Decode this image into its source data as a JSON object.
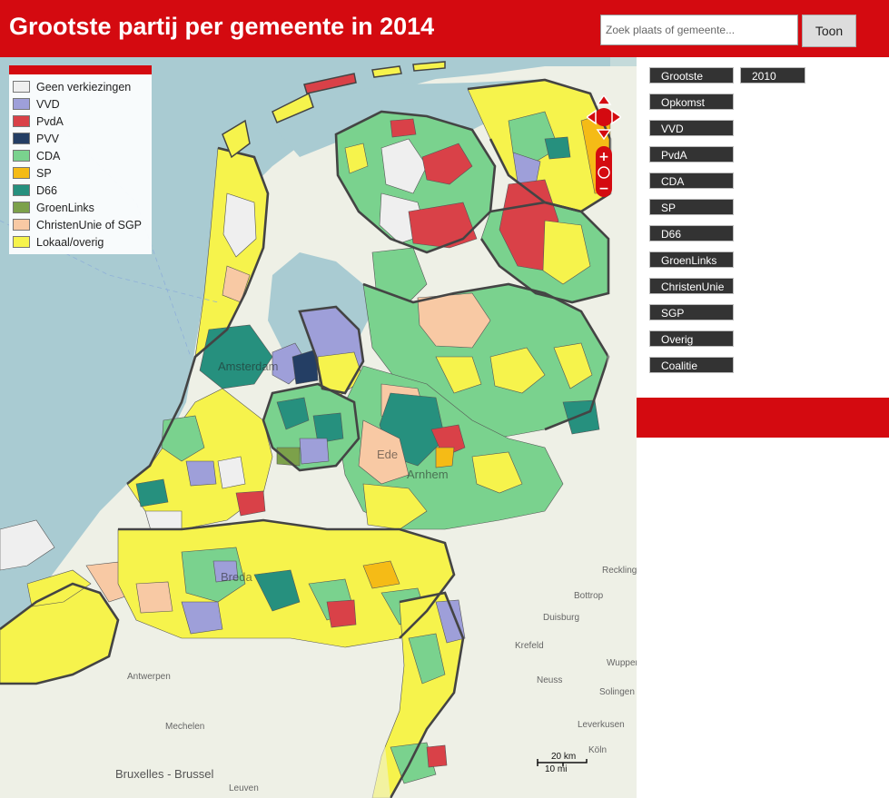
{
  "header": {
    "title": "Grootste partij per gemeente in 2014",
    "search_placeholder": "Zoek plaats of gemeente...",
    "search_value": "",
    "search_button": "Toon"
  },
  "legend": {
    "items": [
      {
        "label": "Geen verkiezingen",
        "color": "#efefef"
      },
      {
        "label": "VVD",
        "color": "#9e9fd9"
      },
      {
        "label": "PvdA",
        "color": "#d94148"
      },
      {
        "label": "PVV",
        "color": "#243e64"
      },
      {
        "label": "CDA",
        "color": "#7ad28e"
      },
      {
        "label": "SP",
        "color": "#f5bb16"
      },
      {
        "label": "D66",
        "color": "#26907e"
      },
      {
        "label": "GroenLinks",
        "color": "#7ca14a"
      },
      {
        "label": "ChristenUnie of SGP",
        "color": "#f8c9a4"
      },
      {
        "label": "Lokaal/overig",
        "color": "#f6f34c"
      }
    ]
  },
  "panel": {
    "year_buttons": [
      "Grootste",
      "2010"
    ],
    "buttons": [
      "Opkomst",
      "VVD",
      "PvdA",
      "CDA",
      "SP",
      "D66",
      "GroenLinks",
      "ChristenUnie",
      "SGP",
      "Overig",
      "Coalitie"
    ]
  },
  "map": {
    "labels": [
      "Amsterdam",
      "Ede",
      "Arnhem",
      "Breda",
      "Antwerpen",
      "Mechelen",
      "Bruxelles - Brussel",
      "Leuven",
      "Duisburg",
      "Krefeld",
      "Neuss",
      "Bottrop",
      "Recklinghausen",
      "Wuppertal",
      "Solingen",
      "Leverkusen",
      "Köln"
    ],
    "scale_km": "20 km",
    "scale_mi": "10 mi",
    "water_color": "#a9cbd2",
    "land_color": "#eef0e6",
    "border_color": "#444444"
  }
}
